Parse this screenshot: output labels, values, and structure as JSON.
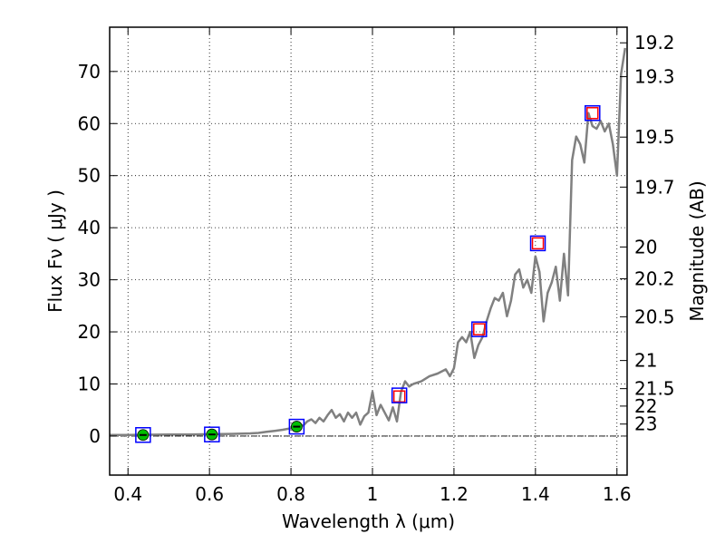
{
  "chart_data": {
    "type": "line",
    "xlabel": "Wavelength  λ (μm)",
    "ylabel": "Flux  Fν  ( μJy )",
    "y2label": "Magnitude (AB)",
    "xlim": [
      0.355,
      1.625
    ],
    "ylim": [
      -7.5,
      78.5
    ],
    "grid": true,
    "x_ticks": [
      0.4,
      0.6,
      0.8,
      1.0,
      1.2,
      1.4,
      1.6
    ],
    "x_tick_labels": [
      "0.4",
      "0.6",
      "0.8",
      "1",
      "1.2",
      "1.4",
      "1.6"
    ],
    "y_ticks": [
      0,
      10,
      20,
      30,
      40,
      50,
      60,
      70
    ],
    "y_tick_labels": [
      "0",
      "10",
      "20",
      "30",
      "40",
      "50",
      "60",
      "70"
    ],
    "mag_ticks": [
      {
        "label": "19.2",
        "flux": 75.5
      },
      {
        "label": "19.3",
        "flux": 69.0
      },
      {
        "label": "19.5",
        "flux": 57.4
      },
      {
        "label": "19.7",
        "flux": 47.8
      },
      {
        "label": "20",
        "flux": 36.3
      },
      {
        "label": "20.2",
        "flux": 30.2
      },
      {
        "label": "20.5",
        "flux": 22.9
      },
      {
        "label": "21",
        "flux": 14.5
      },
      {
        "label": "21.5",
        "flux": 9.1
      },
      {
        "label": "22",
        "flux": 5.75
      },
      {
        "label": "23",
        "flux": 2.3
      }
    ],
    "series": [
      {
        "name": "model spectrum",
        "color": "#808080",
        "x": [
          0.355,
          0.4,
          0.45,
          0.5,
          0.55,
          0.6,
          0.65,
          0.7,
          0.72,
          0.74,
          0.76,
          0.78,
          0.8,
          0.81,
          0.82,
          0.83,
          0.84,
          0.85,
          0.86,
          0.87,
          0.88,
          0.89,
          0.9,
          0.91,
          0.92,
          0.93,
          0.94,
          0.95,
          0.96,
          0.97,
          0.98,
          0.99,
          1.0,
          1.01,
          1.02,
          1.03,
          1.04,
          1.05,
          1.06,
          1.07,
          1.08,
          1.09,
          1.1,
          1.12,
          1.14,
          1.16,
          1.18,
          1.19,
          1.2,
          1.21,
          1.22,
          1.23,
          1.24,
          1.25,
          1.26,
          1.27,
          1.28,
          1.29,
          1.3,
          1.31,
          1.32,
          1.33,
          1.34,
          1.35,
          1.36,
          1.37,
          1.38,
          1.39,
          1.4,
          1.41,
          1.42,
          1.43,
          1.44,
          1.45,
          1.46,
          1.47,
          1.48,
          1.49,
          1.5,
          1.51,
          1.52,
          1.53,
          1.54,
          1.55,
          1.56,
          1.57,
          1.58,
          1.59,
          1.6,
          1.61,
          1.62
        ],
        "y": [
          0.2,
          0.2,
          0.25,
          0.3,
          0.3,
          0.35,
          0.4,
          0.5,
          0.6,
          0.8,
          1.0,
          1.2,
          1.5,
          1.8,
          2.2,
          2.0,
          2.8,
          3.2,
          2.5,
          3.5,
          2.8,
          4.0,
          5.0,
          3.5,
          4.2,
          2.8,
          4.5,
          3.5,
          4.5,
          2.2,
          3.8,
          4.5,
          8.5,
          4.0,
          6.0,
          4.5,
          3.0,
          5.5,
          2.8,
          8.5,
          10.5,
          9.5,
          10.0,
          10.5,
          11.5,
          12.0,
          12.8,
          11.5,
          13.0,
          18.0,
          19.0,
          18.0,
          20.0,
          15.0,
          17.5,
          19.0,
          22.0,
          24.5,
          26.5,
          26.0,
          27.5,
          23.0,
          26.0,
          31.0,
          32.0,
          28.5,
          30.0,
          27.5,
          34.5,
          31.5,
          22.0,
          27.5,
          29.5,
          32.5,
          26.0,
          35.0,
          27.0,
          53.0,
          57.5,
          56.0,
          52.5,
          62.0,
          59.5,
          59.0,
          60.5,
          58.5,
          60.0,
          56.0,
          50.0,
          69.5,
          74.5
        ]
      }
    ],
    "photometry_observed": [
      {
        "x": 0.437,
        "y": 0.2
      },
      {
        "x": 0.606,
        "y": 0.3
      },
      {
        "x": 0.814,
        "y": 1.8
      },
      {
        "x": 1.066,
        "y": 7.8
      },
      {
        "x": 1.262,
        "y": 20.5
      },
      {
        "x": 1.406,
        "y": 37.0
      },
      {
        "x": 1.54,
        "y": 62.0
      }
    ],
    "photometry_model": [
      {
        "x": 1.066,
        "y": 7.6
      },
      {
        "x": 1.262,
        "y": 20.5
      },
      {
        "x": 1.406,
        "y": 37.0
      },
      {
        "x": 1.54,
        "y": 62.0
      }
    ],
    "detections": [
      {
        "x": 0.437,
        "y": 0.2
      },
      {
        "x": 0.606,
        "y": 0.3
      },
      {
        "x": 0.814,
        "y": 1.8
      }
    ],
    "colors": {
      "spectrum": "#808080",
      "observed_box": "#0000ff",
      "model_box": "#ff0000",
      "detection": "#00bf00"
    }
  }
}
